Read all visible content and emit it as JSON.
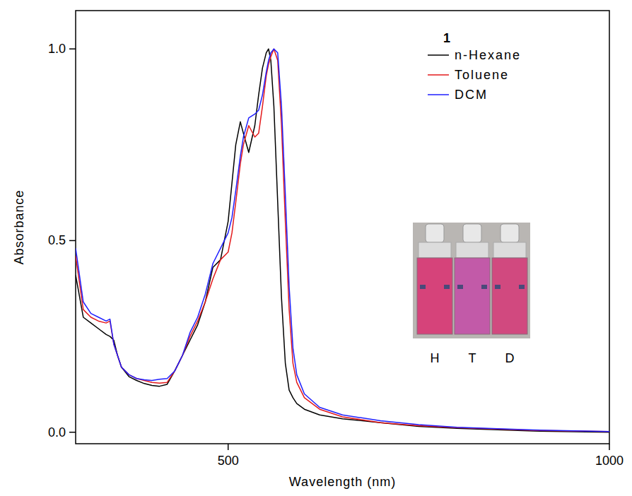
{
  "chart_data": {
    "type": "line",
    "title": "1",
    "x_label": "Wavelength (nm)",
    "y_label": "Absorbance",
    "x": [
      300,
      310,
      320,
      330,
      340,
      345,
      350,
      355,
      360,
      370,
      380,
      390,
      400,
      410,
      420,
      430,
      440,
      450,
      460,
      470,
      480,
      490,
      500,
      505,
      510,
      516,
      520,
      527,
      535,
      540,
      545,
      550,
      553,
      556,
      560,
      565,
      570,
      575,
      580,
      585,
      590,
      600,
      620,
      650,
      700,
      750,
      800,
      900,
      1000
    ],
    "series": [
      {
        "name": "n-Hexane",
        "color": "#000000",
        "values": [
          0.41,
          0.3,
          0.285,
          0.27,
          0.255,
          0.25,
          0.24,
          0.2,
          0.17,
          0.145,
          0.135,
          0.127,
          0.122,
          0.12,
          0.125,
          0.16,
          0.2,
          0.24,
          0.28,
          0.34,
          0.43,
          0.45,
          0.55,
          0.65,
          0.75,
          0.81,
          0.78,
          0.73,
          0.8,
          0.88,
          0.95,
          0.99,
          1.0,
          0.97,
          0.85,
          0.6,
          0.35,
          0.18,
          0.11,
          0.09,
          0.075,
          0.06,
          0.045,
          0.035,
          0.025,
          0.015,
          0.01,
          0.003,
          0.0
        ]
      },
      {
        "name": "Toluene",
        "color": "#e31a1c",
        "values": [
          0.46,
          0.32,
          0.3,
          0.29,
          0.285,
          0.29,
          0.23,
          0.2,
          0.17,
          0.15,
          0.14,
          0.135,
          0.13,
          0.128,
          0.13,
          0.16,
          0.2,
          0.25,
          0.29,
          0.34,
          0.4,
          0.45,
          0.47,
          0.52,
          0.6,
          0.7,
          0.75,
          0.8,
          0.77,
          0.78,
          0.85,
          0.93,
          0.96,
          0.98,
          1.0,
          0.97,
          0.8,
          0.55,
          0.32,
          0.18,
          0.13,
          0.09,
          0.06,
          0.04,
          0.025,
          0.017,
          0.012,
          0.005,
          0.002
        ]
      },
      {
        "name": "DCM",
        "color": "#1f1fff",
        "values": [
          0.48,
          0.34,
          0.31,
          0.3,
          0.29,
          0.295,
          0.23,
          0.2,
          0.17,
          0.15,
          0.14,
          0.137,
          0.135,
          0.138,
          0.14,
          0.16,
          0.2,
          0.26,
          0.3,
          0.36,
          0.44,
          0.48,
          0.52,
          0.56,
          0.63,
          0.72,
          0.77,
          0.82,
          0.83,
          0.84,
          0.88,
          0.94,
          0.97,
          0.99,
          1.0,
          0.99,
          0.85,
          0.62,
          0.38,
          0.22,
          0.15,
          0.1,
          0.065,
          0.045,
          0.03,
          0.02,
          0.013,
          0.006,
          0.002
        ]
      }
    ],
    "xlim": [
      300,
      1000
    ],
    "xticks": [
      500,
      1000
    ],
    "ylim": [
      -0.03,
      1.1
    ],
    "yticks": [
      {
        "value": 0,
        "label": "0.0"
      },
      {
        "value": 0.5,
        "label": "0.5"
      },
      {
        "value": 1,
        "label": "1.0"
      }
    ],
    "legend": "upper right",
    "inset_labels": [
      "H",
      "T",
      "D"
    ]
  }
}
